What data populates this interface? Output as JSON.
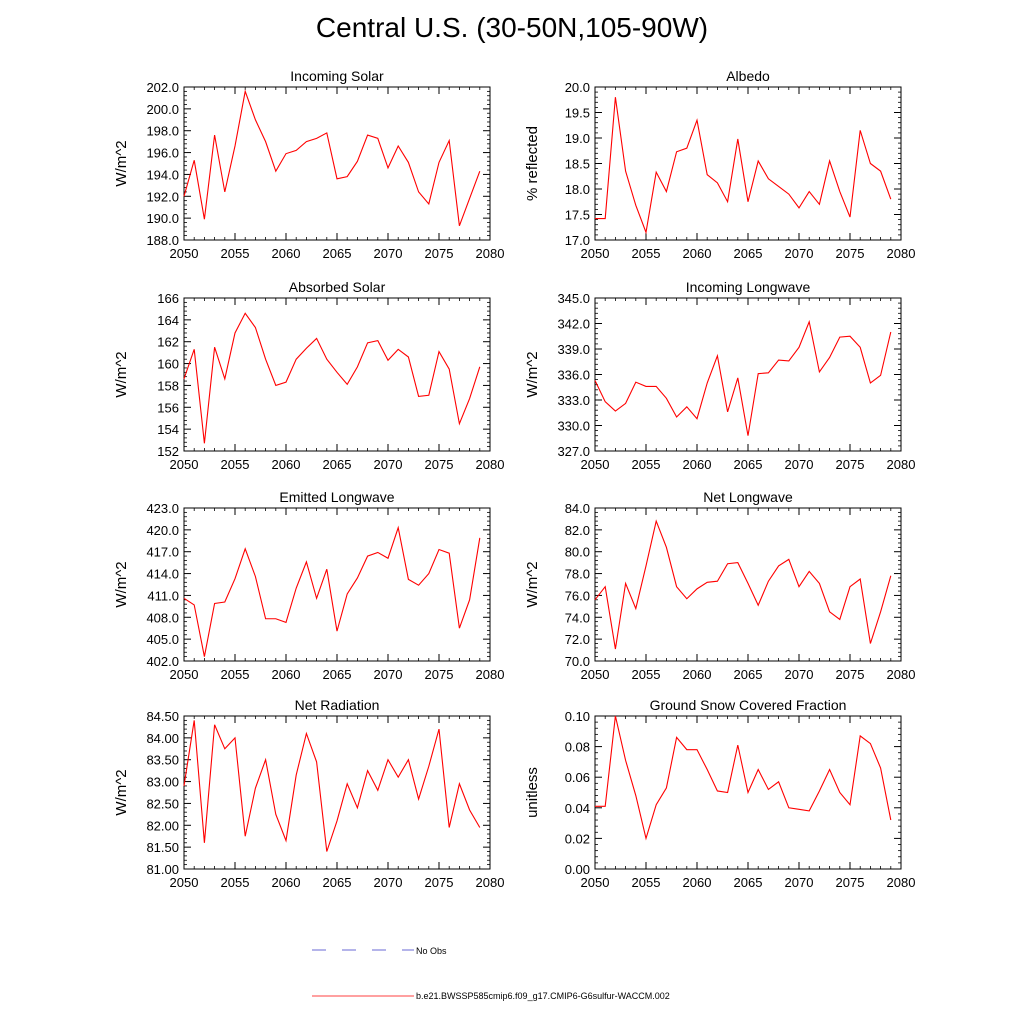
{
  "figure": {
    "title": "Central U.S. (30-50N,105-90W)"
  },
  "chart_data": [
    {
      "type": "line",
      "title": "Incoming Solar",
      "ylabel": "W/m^2",
      "xlim": [
        2050,
        2080
      ],
      "ylim": [
        188,
        202
      ],
      "xticks": [
        2050,
        2055,
        2060,
        2065,
        2070,
        2075,
        2080
      ],
      "yticks": [
        188,
        190,
        192,
        194,
        196,
        198,
        200,
        202
      ],
      "ytick_labels": [
        "188.0",
        "190.0",
        "192.0",
        "194.0",
        "196.0",
        "198.0",
        "200.0",
        "202.0"
      ],
      "x": [
        2050,
        2051,
        2052,
        2053,
        2054,
        2055,
        2056,
        2057,
        2058,
        2059,
        2060,
        2061,
        2062,
        2063,
        2064,
        2065,
        2066,
        2067,
        2068,
        2069,
        2070,
        2071,
        2072,
        2073,
        2074,
        2075,
        2076,
        2077,
        2078,
        2079
      ],
      "series": [
        {
          "name": "b.e21.BWSSP585cmip6.f09_g17.CMIP6-G6sulfur-WACCM.002",
          "color": "#ff0000",
          "values": [
            192.0,
            195.3,
            189.9,
            197.6,
            192.4,
            196.6,
            201.6,
            199.0,
            197.0,
            194.3,
            195.9,
            196.2,
            197.0,
            197.3,
            197.8,
            193.6,
            193.8,
            195.2,
            197.6,
            197.3,
            194.6,
            196.6,
            195.1,
            192.4,
            191.3,
            195.1,
            197.1,
            189.3,
            191.8,
            194.3
          ]
        }
      ],
      "grid": false
    },
    {
      "type": "line",
      "title": "Albedo",
      "ylabel": "% reflected",
      "xlim": [
        2050,
        2080
      ],
      "ylim": [
        17.0,
        20.0
      ],
      "xticks": [
        2050,
        2055,
        2060,
        2065,
        2070,
        2075,
        2080
      ],
      "yticks": [
        17.0,
        17.5,
        18.0,
        18.5,
        19.0,
        19.5,
        20.0
      ],
      "ytick_labels": [
        "17.0",
        "17.5",
        "18.0",
        "18.5",
        "19.0",
        "19.5",
        "20.0"
      ],
      "x": [
        2050,
        2051,
        2052,
        2053,
        2054,
        2055,
        2056,
        2057,
        2058,
        2059,
        2060,
        2061,
        2062,
        2063,
        2064,
        2065,
        2066,
        2067,
        2068,
        2069,
        2070,
        2071,
        2072,
        2073,
        2074,
        2075,
        2076,
        2077,
        2078,
        2079
      ],
      "series": [
        {
          "name": "b.e21.BWSSP585cmip6.f09_g17.CMIP6-G6sulfur-WACCM.002",
          "color": "#ff0000",
          "values": [
            17.42,
            17.42,
            19.8,
            18.35,
            17.68,
            17.15,
            18.33,
            17.95,
            18.73,
            18.8,
            19.35,
            18.28,
            18.12,
            17.75,
            18.98,
            17.75,
            18.55,
            18.2,
            18.05,
            17.9,
            17.63,
            17.95,
            17.7,
            18.55,
            17.95,
            17.45,
            19.15,
            18.5,
            18.35,
            17.8
          ]
        }
      ],
      "grid": false
    },
    {
      "type": "line",
      "title": "Absorbed Solar",
      "ylabel": "W/m^2",
      "xlim": [
        2050,
        2080
      ],
      "ylim": [
        152,
        166
      ],
      "xticks": [
        2050,
        2055,
        2060,
        2065,
        2070,
        2075,
        2080
      ],
      "yticks": [
        152,
        154,
        156,
        158,
        160,
        162,
        164,
        166
      ],
      "ytick_labels": [
        "152",
        "154",
        "156",
        "158",
        "160",
        "162",
        "164",
        "166"
      ],
      "x": [
        2050,
        2051,
        2052,
        2053,
        2054,
        2055,
        2056,
        2057,
        2058,
        2059,
        2060,
        2061,
        2062,
        2063,
        2064,
        2065,
        2066,
        2067,
        2068,
        2069,
        2070,
        2071,
        2072,
        2073,
        2074,
        2075,
        2076,
        2077,
        2078,
        2079
      ],
      "series": [
        {
          "name": "b.e21.BWSSP585cmip6.f09_g17.CMIP6-G6sulfur-WACCM.002",
          "color": "#ff0000",
          "values": [
            158.6,
            161.3,
            152.7,
            161.5,
            158.6,
            162.8,
            164.6,
            163.3,
            160.4,
            158.0,
            158.3,
            160.4,
            161.4,
            162.3,
            160.4,
            159.2,
            158.1,
            159.7,
            161.9,
            162.1,
            160.3,
            161.3,
            160.6,
            157.0,
            157.1,
            161.1,
            159.5,
            154.5,
            156.8,
            159.7
          ]
        }
      ],
      "grid": false
    },
    {
      "type": "line",
      "title": "Incoming Longwave",
      "ylabel": "W/m^2",
      "xlim": [
        2050,
        2080
      ],
      "ylim": [
        327.0,
        345.0
      ],
      "xticks": [
        2050,
        2055,
        2060,
        2065,
        2070,
        2075,
        2080
      ],
      "yticks": [
        327,
        330,
        333,
        336,
        339,
        342,
        345
      ],
      "ytick_labels": [
        "327.0",
        "330.0",
        "333.0",
        "336.0",
        "339.0",
        "342.0",
        "345.0"
      ],
      "x": [
        2050,
        2051,
        2052,
        2053,
        2054,
        2055,
        2056,
        2057,
        2058,
        2059,
        2060,
        2061,
        2062,
        2063,
        2064,
        2065,
        2066,
        2067,
        2068,
        2069,
        2070,
        2071,
        2072,
        2073,
        2074,
        2075,
        2076,
        2077,
        2078,
        2079
      ],
      "series": [
        {
          "name": "b.e21.BWSSP585cmip6.f09_g17.CMIP6-G6sulfur-WACCM.002",
          "color": "#ff0000",
          "values": [
            335.3,
            332.8,
            331.7,
            332.6,
            335.1,
            334.6,
            334.6,
            333.2,
            331.0,
            332.2,
            330.8,
            335.0,
            338.2,
            331.6,
            335.6,
            328.8,
            336.1,
            336.2,
            337.7,
            337.6,
            339.2,
            342.2,
            336.3,
            338.0,
            340.4,
            340.5,
            339.2,
            335.0,
            335.9,
            341.0
          ]
        }
      ],
      "grid": false
    },
    {
      "type": "line",
      "title": "Emitted Longwave",
      "ylabel": "W/m^2",
      "xlim": [
        2050,
        2080
      ],
      "ylim": [
        402.0,
        423.0
      ],
      "xticks": [
        2050,
        2055,
        2060,
        2065,
        2070,
        2075,
        2080
      ],
      "yticks": [
        402,
        405,
        408,
        411,
        414,
        417,
        420,
        423
      ],
      "ytick_labels": [
        "402.0",
        "405.0",
        "408.0",
        "411.0",
        "414.0",
        "417.0",
        "420.0",
        "423.0"
      ],
      "x": [
        2050,
        2051,
        2052,
        2053,
        2054,
        2055,
        2056,
        2057,
        2058,
        2059,
        2060,
        2061,
        2062,
        2063,
        2064,
        2065,
        2066,
        2067,
        2068,
        2069,
        2070,
        2071,
        2072,
        2073,
        2074,
        2075,
        2076,
        2077,
        2078,
        2079
      ],
      "series": [
        {
          "name": "b.e21.BWSSP585cmip6.f09_g17.CMIP6-G6sulfur-WACCM.002",
          "color": "#ff0000",
          "values": [
            410.6,
            409.7,
            402.6,
            409.9,
            410.1,
            413.3,
            417.4,
            413.6,
            407.8,
            407.8,
            407.3,
            412.0,
            415.6,
            410.6,
            414.6,
            406.1,
            411.2,
            413.4,
            416.4,
            416.9,
            416.1,
            420.3,
            413.2,
            412.4,
            414.0,
            417.3,
            416.8,
            406.5,
            410.4,
            418.9
          ]
        }
      ],
      "grid": false
    },
    {
      "type": "line",
      "title": "Net Longwave",
      "ylabel": "W/m^2",
      "xlim": [
        2050,
        2080
      ],
      "ylim": [
        70.0,
        84.0
      ],
      "xticks": [
        2050,
        2055,
        2060,
        2065,
        2070,
        2075,
        2080
      ],
      "yticks": [
        70,
        72,
        74,
        76,
        78,
        80,
        82,
        84
      ],
      "ytick_labels": [
        "70.0",
        "72.0",
        "74.0",
        "76.0",
        "78.0",
        "80.0",
        "82.0",
        "84.0"
      ],
      "x": [
        2050,
        2051,
        2052,
        2053,
        2054,
        2055,
        2056,
        2057,
        2058,
        2059,
        2060,
        2061,
        2062,
        2063,
        2064,
        2065,
        2066,
        2067,
        2068,
        2069,
        2070,
        2071,
        2072,
        2073,
        2074,
        2075,
        2076,
        2077,
        2078,
        2079
      ],
      "series": [
        {
          "name": "b.e21.BWSSP585cmip6.f09_g17.CMIP6-G6sulfur-WACCM.002",
          "color": "#ff0000",
          "values": [
            75.6,
            76.8,
            71.1,
            77.1,
            74.8,
            78.7,
            82.8,
            80.4,
            76.8,
            75.7,
            76.6,
            77.2,
            77.3,
            78.9,
            79.0,
            77.1,
            75.1,
            77.3,
            78.7,
            79.3,
            76.8,
            78.2,
            77.1,
            74.5,
            73.8,
            76.8,
            77.5,
            71.6,
            74.5,
            77.8
          ]
        }
      ],
      "grid": false
    },
    {
      "type": "line",
      "title": "Net Radiation",
      "ylabel": "W/m^2",
      "xlim": [
        2050,
        2080
      ],
      "ylim": [
        81.0,
        84.5
      ],
      "xticks": [
        2050,
        2055,
        2060,
        2065,
        2070,
        2075,
        2080
      ],
      "yticks": [
        81.0,
        81.5,
        82.0,
        82.5,
        83.0,
        83.5,
        84.0,
        84.5
      ],
      "ytick_labels": [
        "81.00",
        "81.50",
        "82.00",
        "82.50",
        "83.00",
        "83.50",
        "84.00",
        "84.50"
      ],
      "x": [
        2050,
        2051,
        2052,
        2053,
        2054,
        2055,
        2056,
        2057,
        2058,
        2059,
        2060,
        2061,
        2062,
        2063,
        2064,
        2065,
        2066,
        2067,
        2068,
        2069,
        2070,
        2071,
        2072,
        2073,
        2074,
        2075,
        2076,
        2077,
        2078,
        2079
      ],
      "series": [
        {
          "name": "b.e21.BWSSP585cmip6.f09_g17.CMIP6-G6sulfur-WACCM.002",
          "color": "#ff0000",
          "values": [
            82.9,
            84.4,
            81.6,
            84.3,
            83.75,
            84.0,
            81.75,
            82.85,
            83.5,
            82.25,
            81.65,
            83.15,
            84.1,
            83.45,
            81.4,
            82.1,
            82.95,
            82.4,
            83.25,
            82.8,
            83.5,
            83.1,
            83.5,
            82.6,
            83.35,
            84.2,
            81.95,
            82.95,
            82.35,
            81.95
          ]
        }
      ],
      "grid": false
    },
    {
      "type": "line",
      "title": "Ground Snow Covered Fraction",
      "ylabel": "unitless",
      "xlim": [
        2050,
        2080
      ],
      "ylim": [
        0.0,
        0.1
      ],
      "xticks": [
        2050,
        2055,
        2060,
        2065,
        2070,
        2075,
        2080
      ],
      "yticks": [
        0.0,
        0.02,
        0.04,
        0.06,
        0.08,
        0.1
      ],
      "ytick_labels": [
        "0.00",
        "0.02",
        "0.04",
        "0.06",
        "0.08",
        "0.10"
      ],
      "x": [
        2050,
        2051,
        2052,
        2053,
        2054,
        2055,
        2056,
        2057,
        2058,
        2059,
        2060,
        2061,
        2062,
        2063,
        2064,
        2065,
        2066,
        2067,
        2068,
        2069,
        2070,
        2071,
        2072,
        2073,
        2074,
        2075,
        2076,
        2077,
        2078,
        2079
      ],
      "series": [
        {
          "name": "b.e21.BWSSP585cmip6.f09_g17.CMIP6-G6sulfur-WACCM.002",
          "color": "#ff0000",
          "values": [
            0.041,
            0.041,
            0.1,
            0.071,
            0.048,
            0.02,
            0.042,
            0.053,
            0.086,
            0.078,
            0.078,
            0.065,
            0.051,
            0.05,
            0.081,
            0.05,
            0.065,
            0.052,
            0.057,
            0.04,
            0.039,
            0.038,
            0.051,
            0.065,
            0.05,
            0.042,
            0.087,
            0.082,
            0.066,
            0.032
          ]
        }
      ],
      "grid": false
    }
  ],
  "legend": {
    "items": [
      {
        "label": "No Obs",
        "color": "#3a3ac8",
        "dash": "dashed"
      },
      {
        "label": "b.e21.BWSSP585cmip6.f09_g17.CMIP6-G6sulfur-WACCM.002",
        "color": "#ff0000",
        "dash": "solid"
      }
    ]
  }
}
